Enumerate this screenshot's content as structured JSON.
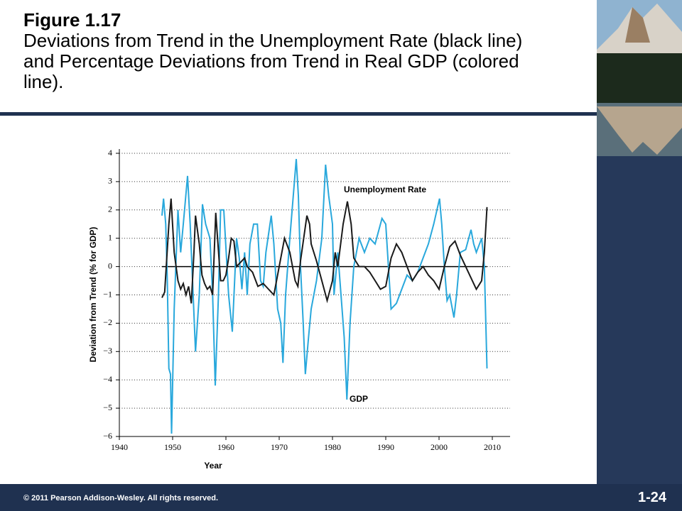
{
  "slide": {
    "heading": "Figure 1.17",
    "caption": "Deviations from Trend in the Unemployment Rate (black line) and Percentage Deviations from Trend in Real GDP (colored line).",
    "footer": "© 2011 Pearson Addison-Wesley. All rights reserved.",
    "page": "1-24"
  },
  "chart_data": {
    "type": "line",
    "xlabel": "Year",
    "ylabel": "Deviation from Trend (% for GDP)",
    "xlim": [
      1940,
      2010
    ],
    "xticks": [
      1940,
      1950,
      1960,
      1970,
      1980,
      1990,
      2000,
      2010
    ],
    "ylim": [
      -6,
      4
    ],
    "yticks": [
      {
        "value": -6,
        "label": "−6"
      },
      {
        "value": -5,
        "label": "−5"
      },
      {
        "value": -4,
        "label": "−4"
      },
      {
        "value": -3,
        "label": "−3"
      },
      {
        "value": -2,
        "label": "−2"
      },
      {
        "value": -1,
        "label": "−1"
      },
      0,
      1,
      2,
      3,
      4
    ],
    "grid": true,
    "series": [
      {
        "name": "GDP",
        "color": "#29a8dc",
        "x": [
          1948,
          1948.3,
          1948.7,
          1949,
          1949.3,
          1949.6,
          1949.8,
          1950.3,
          1951,
          1951.5,
          1952,
          1952.8,
          1953.3,
          1954.3,
          1955,
          1955.6,
          1956.2,
          1957,
          1957.5,
          1958,
          1958.6,
          1959,
          1959.6,
          1960.5,
          1961.2,
          1962,
          1962.5,
          1963,
          1963.5,
          1964,
          1964.5,
          1965.2,
          1965.9,
          1966.5,
          1967,
          1967.5,
          1968.5,
          1969,
          1969.7,
          1970.3,
          1970.7,
          1971.2,
          1972,
          1973.2,
          1973.6,
          1974,
          1974.5,
          1974.9,
          1975.5,
          1976,
          1977,
          1978,
          1978.7,
          1979.3,
          1980,
          1980.3,
          1981,
          1981.6,
          1982.2,
          1982.7,
          1983.3,
          1984,
          1985,
          1986,
          1987,
          1988,
          1989.3,
          1990,
          1991,
          1992,
          1993,
          1994,
          1995,
          1996,
          1997,
          1998,
          1999,
          2000.1,
          2000.5,
          2001,
          2001.5,
          2002,
          2002.8,
          2003.3,
          2004,
          2005,
          2006,
          2006.5,
          2007,
          2008,
          2008.5,
          2009
        ],
        "values": [
          1.8,
          2.4,
          1.5,
          -0.5,
          -3.6,
          -3.8,
          -5.9,
          -1.5,
          2,
          0.5,
          1.5,
          3.2,
          1.5,
          -3,
          -1,
          2.2,
          1.5,
          1,
          -1,
          -4.2,
          -1,
          2,
          2,
          -1,
          -2.3,
          1,
          0.3,
          -0.8,
          0.5,
          -1,
          0.8,
          1.5,
          1.5,
          -0.5,
          -0.7,
          0.5,
          1.8,
          0.8,
          -1.5,
          -2,
          -3.4,
          -1,
          1,
          3.8,
          2.5,
          0,
          -2,
          -3.8,
          -2.5,
          -1.5,
          -0.5,
          1,
          3.6,
          2.5,
          1.5,
          -1,
          0.5,
          -1,
          -2.5,
          -4.7,
          -2,
          0,
          1,
          0.5,
          1,
          0.8,
          1.7,
          1.5,
          -1.5,
          -1.3,
          -0.8,
          -0.3,
          -0.5,
          -0.2,
          0.3,
          0.8,
          1.5,
          2.4,
          1.5,
          0,
          -1.2,
          -1,
          -1.8,
          -1,
          0.5,
          0.6,
          1.3,
          0.8,
          0.5,
          1,
          0,
          -3.6
        ]
      },
      {
        "name": "Unemployment Rate",
        "color": "#1a1a1a",
        "x": [
          1948,
          1948.5,
          1949.3,
          1949.7,
          1950.3,
          1951,
          1951.5,
          1952,
          1952.5,
          1953,
          1953.5,
          1954,
          1954.3,
          1955,
          1955.5,
          1956,
          1956.5,
          1957,
          1957.5,
          1958.1,
          1958.5,
          1959,
          1959.5,
          1960,
          1960.5,
          1961,
          1961.5,
          1962,
          1963,
          1963.5,
          1964,
          1965,
          1966,
          1967,
          1968,
          1969,
          1970,
          1971,
          1972,
          1973,
          1973.5,
          1974,
          1975.2,
          1975.7,
          1976,
          1977,
          1978,
          1979,
          1980,
          1980.5,
          1981,
          1982,
          1982.8,
          1983.5,
          1984,
          1985,
          1986,
          1987,
          1988,
          1989,
          1990,
          1991,
          1992,
          1993,
          1994,
          1995,
          1996,
          1997,
          1998,
          1999,
          2000,
          2001,
          2002,
          2003,
          2004,
          2005,
          2006,
          2007,
          2008,
          2008.5,
          2009
        ],
        "values": [
          -1.1,
          -0.9,
          1.5,
          2.4,
          0.5,
          -0.5,
          -0.8,
          -0.6,
          -1,
          -0.7,
          -1.3,
          0.5,
          1.8,
          0.8,
          -0.3,
          -0.6,
          -0.8,
          -0.7,
          -1,
          1.9,
          0.8,
          -0.5,
          -0.5,
          -0.3,
          0.3,
          1,
          0.9,
          0,
          0.2,
          0.3,
          0,
          -0.2,
          -0.7,
          -0.6,
          -0.8,
          -1,
          0,
          1,
          0.5,
          -0.5,
          -0.7,
          0.2,
          1.8,
          1.5,
          0.8,
          0.2,
          -0.5,
          -1.2,
          -0.5,
          0.5,
          0,
          1.5,
          2.3,
          1.5,
          0.3,
          0,
          0,
          -0.2,
          -0.5,
          -0.8,
          -0.7,
          0.3,
          0.8,
          0.5,
          0,
          -0.5,
          -0.2,
          0,
          -0.3,
          -0.5,
          -0.8,
          0,
          0.7,
          0.9,
          0.4,
          0,
          -0.4,
          -0.8,
          -0.5,
          0.5,
          2.1
        ]
      }
    ]
  }
}
